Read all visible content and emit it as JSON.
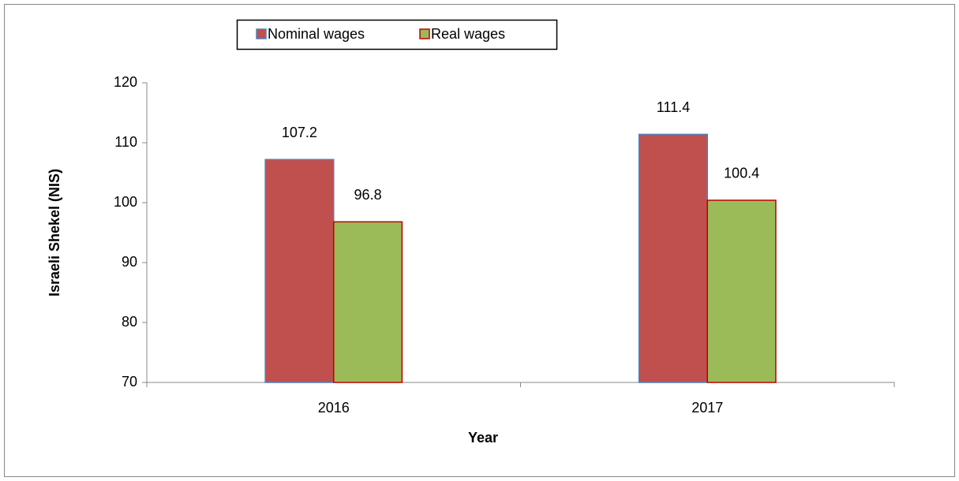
{
  "chart_data": {
    "type": "bar",
    "categories": [
      "2016",
      "2017"
    ],
    "series": [
      {
        "name": "Nominal wages",
        "color": "#c0504d",
        "values": [
          107.2,
          111.4
        ]
      },
      {
        "name": "Real wages",
        "color": "#9bbb59",
        "values": [
          96.8,
          100.4
        ]
      }
    ],
    "x_label": "Year",
    "y_label": "Israeli Shekel (NIS)",
    "ylim": [
      70,
      120
    ],
    "yticks": [
      70,
      80,
      90,
      100,
      110,
      120
    ],
    "grid": false,
    "legend": "top"
  }
}
